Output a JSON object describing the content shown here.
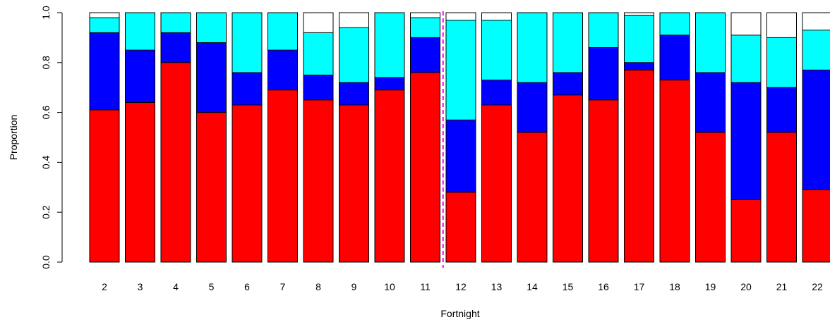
{
  "chart_data": {
    "type": "bar",
    "stacked": true,
    "xlabel": "Fortnight",
    "ylabel": "Proportion",
    "ylim": [
      0,
      1
    ],
    "yticks": [
      "0.0",
      "0.2",
      "0.4",
      "0.6",
      "0.8",
      "1.0"
    ],
    "categories": [
      "2",
      "3",
      "4",
      "5",
      "6",
      "7",
      "8",
      "9",
      "10",
      "11",
      "12",
      "13",
      "14",
      "15",
      "16",
      "17",
      "18",
      "19",
      "20",
      "21",
      "22"
    ],
    "series": [
      {
        "color": "#ff0000",
        "values": [
          0.61,
          0.64,
          0.8,
          0.6,
          0.63,
          0.69,
          0.65,
          0.63,
          0.69,
          0.76,
          0.28,
          0.63,
          0.52,
          0.67,
          0.65,
          0.77,
          0.73,
          0.52,
          0.25,
          0.52,
          0.29
        ]
      },
      {
        "color": "#0000ff",
        "values": [
          0.31,
          0.21,
          0.12,
          0.28,
          0.13,
          0.16,
          0.1,
          0.09,
          0.05,
          0.14,
          0.29,
          0.1,
          0.2,
          0.09,
          0.21,
          0.03,
          0.18,
          0.24,
          0.47,
          0.18,
          0.48
        ]
      },
      {
        "color": "#00ffff",
        "values": [
          0.06,
          0.15,
          0.08,
          0.12,
          0.24,
          0.15,
          0.17,
          0.22,
          0.26,
          0.08,
          0.4,
          0.24,
          0.28,
          0.24,
          0.14,
          0.19,
          0.09,
          0.24,
          0.19,
          0.2,
          0.16
        ]
      },
      {
        "color": "#ffffff",
        "values": [
          0.02,
          0.0,
          0.0,
          0.0,
          0.0,
          0.0,
          0.08,
          0.06,
          0.0,
          0.02,
          0.03,
          0.03,
          0.0,
          0.0,
          0.0,
          0.01,
          0.0,
          0.0,
          0.09,
          0.1,
          0.07
        ]
      }
    ],
    "reference_line": {
      "after_category": "11",
      "color": "#ff00ff",
      "style": "dashed"
    },
    "grid": false,
    "legend": "none"
  }
}
